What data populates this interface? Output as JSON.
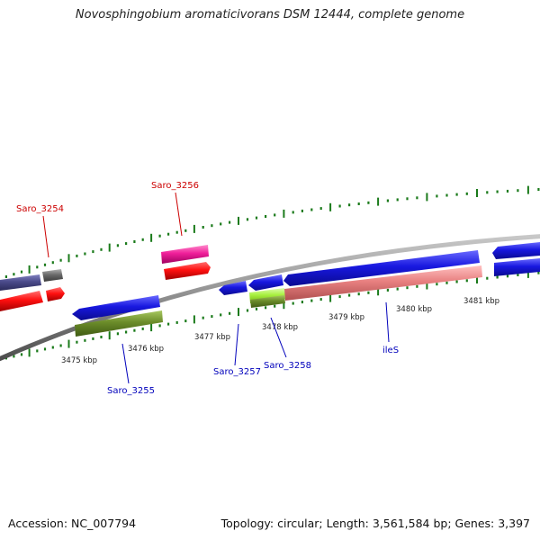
{
  "title": "Novosphingobium aromaticivorans DSM 12444, complete genome",
  "accession": "Accession: NC_007794",
  "summary": "Topology: circular; Length: 3,561,584 bp; Genes: 3,397",
  "colors": {
    "backbone": "#8c8c8c",
    "cds_blue": "#1818e0",
    "cds_red": "#ff1010",
    "cds_pink": "#f01f9a",
    "cds_olive": "#6b8c2a",
    "cds_salmon": "#e88080",
    "cds_lime": "#a8f040",
    "cds_slate": "#4a4a8a",
    "cds_gray": "#606060",
    "tick_green": "#1a7a1a",
    "label_red": "#cc0000",
    "label_blue": "#0000bb"
  },
  "ticks": [
    "3475 kbp",
    "3476 kbp",
    "3477 kbp",
    "3478 kbp",
    "3479 kbp",
    "3480 kbp",
    "3481 kbp"
  ],
  "genes": {
    "top": [
      "Saro_3254",
      "Saro_3256"
    ],
    "bottom": [
      "Saro_3255",
      "Saro_3257",
      "Saro_3258",
      "ileS"
    ]
  }
}
